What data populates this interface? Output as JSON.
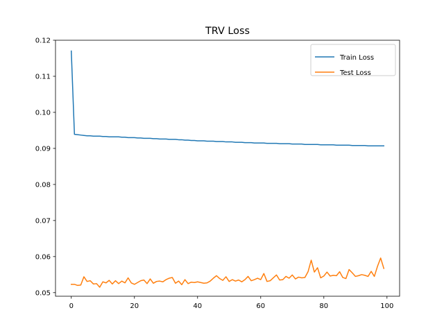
{
  "chart_data": {
    "type": "line",
    "title": "TRV Loss",
    "xlabel": "",
    "ylabel": "",
    "xlim": [
      -5.0,
      104.0
    ],
    "ylim": [
      0.049,
      0.12
    ],
    "xticks": [
      0,
      20,
      40,
      60,
      80,
      100
    ],
    "yticks": [
      0.05,
      0.06,
      0.07,
      0.08,
      0.09,
      0.1,
      0.11,
      0.12
    ],
    "ytick_labels": [
      "0.05",
      "0.06",
      "0.07",
      "0.08",
      "0.09",
      "0.10",
      "0.11",
      "0.12"
    ],
    "grid": false,
    "legend_position": "top-right",
    "series": [
      {
        "name": "Train Loss",
        "color": "#1f77b4",
        "x": [
          0,
          1,
          2,
          3,
          4,
          5,
          6,
          7,
          8,
          9,
          10,
          11,
          12,
          13,
          14,
          15,
          16,
          17,
          18,
          19,
          20,
          21,
          22,
          23,
          24,
          25,
          26,
          27,
          28,
          29,
          30,
          31,
          32,
          33,
          34,
          35,
          36,
          37,
          38,
          39,
          40,
          41,
          42,
          43,
          44,
          45,
          46,
          47,
          48,
          49,
          50,
          51,
          52,
          53,
          54,
          55,
          56,
          57,
          58,
          59,
          60,
          61,
          62,
          63,
          64,
          65,
          66,
          67,
          68,
          69,
          70,
          71,
          72,
          73,
          74,
          75,
          76,
          77,
          78,
          79,
          80,
          81,
          82,
          83,
          84,
          85,
          86,
          87,
          88,
          89,
          90,
          91,
          92,
          93,
          94,
          95,
          96,
          97,
          98,
          99
        ],
        "values": [
          0.117,
          0.0939,
          0.0938,
          0.0937,
          0.0936,
          0.0935,
          0.0935,
          0.0934,
          0.0934,
          0.0934,
          0.0933,
          0.0933,
          0.0932,
          0.0932,
          0.0932,
          0.0932,
          0.0931,
          0.0931,
          0.093,
          0.093,
          0.093,
          0.0929,
          0.0929,
          0.0928,
          0.0928,
          0.0928,
          0.0927,
          0.0927,
          0.0926,
          0.0926,
          0.0926,
          0.0925,
          0.0925,
          0.0925,
          0.0924,
          0.0924,
          0.0923,
          0.0923,
          0.0922,
          0.0922,
          0.0921,
          0.0921,
          0.0921,
          0.092,
          0.092,
          0.092,
          0.0919,
          0.0919,
          0.0919,
          0.0918,
          0.0918,
          0.0918,
          0.0917,
          0.0917,
          0.0917,
          0.0916,
          0.0916,
          0.0916,
          0.0915,
          0.0915,
          0.0915,
          0.0915,
          0.0914,
          0.0914,
          0.0914,
          0.0914,
          0.0913,
          0.0913,
          0.0913,
          0.0913,
          0.0912,
          0.0912,
          0.0912,
          0.0912,
          0.0911,
          0.0911,
          0.0911,
          0.0911,
          0.0911,
          0.091,
          0.091,
          0.091,
          0.091,
          0.091,
          0.0909,
          0.0909,
          0.0909,
          0.0909,
          0.0909,
          0.0908,
          0.0908,
          0.0908,
          0.0908,
          0.0908,
          0.0907,
          0.0907,
          0.0907,
          0.0907,
          0.0907,
          0.0907
        ]
      },
      {
        "name": "Test Loss",
        "color": "#ff7f0e",
        "x": [
          0,
          1,
          2,
          3,
          4,
          5,
          6,
          7,
          8,
          9,
          10,
          11,
          12,
          13,
          14,
          15,
          16,
          17,
          18,
          19,
          20,
          21,
          22,
          23,
          24,
          25,
          26,
          27,
          28,
          29,
          30,
          31,
          32,
          33,
          34,
          35,
          36,
          37,
          38,
          39,
          40,
          41,
          42,
          43,
          44,
          45,
          46,
          47,
          48,
          49,
          50,
          51,
          52,
          53,
          54,
          55,
          56,
          57,
          58,
          59,
          60,
          61,
          62,
          63,
          64,
          65,
          66,
          67,
          68,
          69,
          70,
          71,
          72,
          73,
          74,
          75,
          76,
          77,
          78,
          79,
          80,
          81,
          82,
          83,
          84,
          85,
          86,
          87,
          88,
          89,
          90,
          91,
          92,
          93,
          94,
          95,
          96,
          97,
          98,
          99
        ],
        "values": [
          0.0523,
          0.0523,
          0.052,
          0.0521,
          0.0544,
          0.0531,
          0.0533,
          0.0524,
          0.0525,
          0.0515,
          0.053,
          0.0527,
          0.0534,
          0.0524,
          0.0533,
          0.0525,
          0.0532,
          0.0527,
          0.0541,
          0.0527,
          0.0523,
          0.0528,
          0.0533,
          0.0535,
          0.0525,
          0.0538,
          0.0526,
          0.0531,
          0.0532,
          0.053,
          0.0536,
          0.054,
          0.0542,
          0.0526,
          0.0532,
          0.0522,
          0.0536,
          0.0525,
          0.0529,
          0.0528,
          0.053,
          0.0528,
          0.0526,
          0.0527,
          0.0532,
          0.054,
          0.0547,
          0.0539,
          0.0534,
          0.0544,
          0.0531,
          0.0536,
          0.0532,
          0.0535,
          0.053,
          0.0536,
          0.0545,
          0.0533,
          0.0536,
          0.054,
          0.0536,
          0.0553,
          0.0531,
          0.0533,
          0.0541,
          0.0549,
          0.0535,
          0.0536,
          0.0545,
          0.054,
          0.0549,
          0.0538,
          0.0543,
          0.0541,
          0.0542,
          0.0558,
          0.059,
          0.0557,
          0.0569,
          0.0541,
          0.0546,
          0.0557,
          0.0546,
          0.0548,
          0.0547,
          0.0558,
          0.0542,
          0.0539,
          0.0564,
          0.0555,
          0.0545,
          0.0547,
          0.055,
          0.0548,
          0.0545,
          0.0559,
          0.0545,
          0.0573,
          0.0596,
          0.0567
        ]
      }
    ]
  }
}
